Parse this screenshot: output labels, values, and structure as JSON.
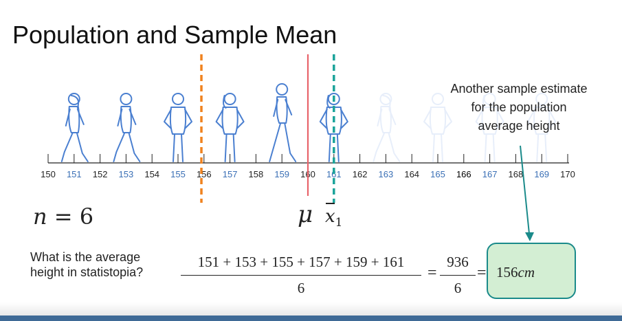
{
  "title": "Population and Sample Mean",
  "axis": {
    "min": 150,
    "max": 170,
    "ticks": [
      {
        "label": "150",
        "color": "#222222"
      },
      {
        "label": "151",
        "color": "#3a6fb5"
      },
      {
        "label": "152",
        "color": "#222222"
      },
      {
        "label": "153",
        "color": "#3a6fb5"
      },
      {
        "label": "154",
        "color": "#222222"
      },
      {
        "label": "155",
        "color": "#3a6fb5"
      },
      {
        "label": "156",
        "color": "#222222"
      },
      {
        "label": "157",
        "color": "#3a6fb5"
      },
      {
        "label": "158",
        "color": "#222222"
      },
      {
        "label": "159",
        "color": "#3a6fb5"
      },
      {
        "label": "160",
        "color": "#222222"
      },
      {
        "label": "161",
        "color": "#3a6fb5"
      },
      {
        "label": "162",
        "color": "#222222"
      },
      {
        "label": "163",
        "color": "#3a6fb5"
      },
      {
        "label": "164",
        "color": "#222222"
      },
      {
        "label": "165",
        "color": "#3a6fb5"
      },
      {
        "label": "166",
        "color": "#000000"
      },
      {
        "label": "167",
        "color": "#3a6fb5"
      },
      {
        "label": "168",
        "color": "#222222"
      },
      {
        "label": "169",
        "color": "#3a6fb5"
      },
      {
        "label": "170",
        "color": "#222222"
      }
    ]
  },
  "figures": [
    {
      "value": 151,
      "kind": "walking-woman",
      "faded": false
    },
    {
      "value": 153,
      "kind": "walking-man",
      "faded": false
    },
    {
      "value": 155,
      "kind": "standing-man",
      "faded": false
    },
    {
      "value": 157,
      "kind": "standing-woman",
      "faded": false
    },
    {
      "value": 159,
      "kind": "walking-man",
      "faded": false
    },
    {
      "value": 161,
      "kind": "standing-woman",
      "faded": false
    },
    {
      "value": 163,
      "kind": "walking-woman",
      "faded": true
    },
    {
      "value": 165,
      "kind": "standing-man",
      "faded": true
    },
    {
      "value": 167,
      "kind": "standing-woman",
      "faded": true
    },
    {
      "value": 169,
      "kind": "standing-man",
      "faded": true
    }
  ],
  "markers": [
    {
      "name": "previous-sample-mean-line",
      "value": 155.9,
      "color": "#f0821e",
      "style": "dashed"
    },
    {
      "name": "population-mean-line",
      "value": 160,
      "color": "#e8636a",
      "style": "solid"
    },
    {
      "name": "sample-mean-line",
      "value": 161,
      "color": "#1aa39a",
      "style": "dashed"
    }
  ],
  "colors": {
    "figure": "#4a7fd0",
    "figure_faded": "#e7eefa",
    "axis": "#222222",
    "arrow": "#1a8a8a",
    "box_fill": "#d3eed3"
  },
  "callout": {
    "lines": [
      "Another sample estimate",
      "for the population",
      "average height"
    ]
  },
  "n_label": {
    "var": "n",
    "rest": " = 6"
  },
  "mu_label": "μ",
  "xbar_label": {
    "var": "x",
    "sub": "1"
  },
  "question": {
    "lines": [
      "What is the average",
      "height in statistopia?"
    ]
  },
  "formula": {
    "numerator": "151 + 153 + 155 + 157 + 159 + 161",
    "denominator": "6",
    "eq": "=",
    "numerator2": "936",
    "denominator2": "6",
    "result": "156",
    "unit": "cm"
  }
}
